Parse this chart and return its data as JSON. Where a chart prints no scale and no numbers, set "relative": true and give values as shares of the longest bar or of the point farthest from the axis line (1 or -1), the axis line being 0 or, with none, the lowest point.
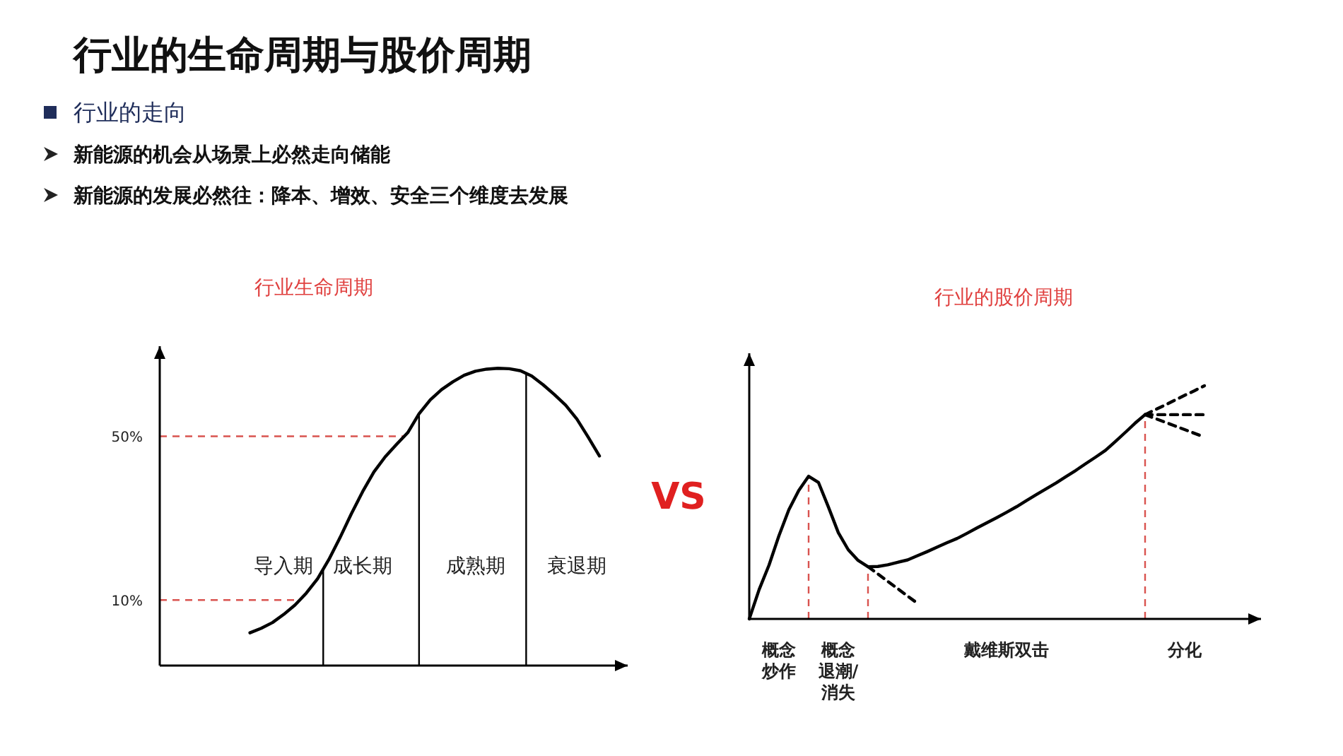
{
  "chart_data": [
    {
      "type": "other",
      "title": "行业的生命周期与股价周期",
      "annotations": [
        "行业的走向",
        "新能源的机会从场景上必然走向储能",
        "新能源的发展必然往：降本、增效、安全三个维度去发展",
        "VS"
      ]
    },
    {
      "type": "line",
      "title": "行业生命周期",
      "ylim": [
        -6,
        72
      ],
      "yticks": [
        {
          "value": 10,
          "label": "10%"
        },
        {
          "value": 50,
          "label": "50%"
        }
      ],
      "categories": [
        null,
        null,
        null,
        null,
        null,
        null,
        null,
        null,
        null,
        null,
        null,
        "导入期",
        null,
        null,
        null,
        null,
        null,
        null,
        "成长期",
        null,
        null,
        null,
        null,
        null,
        null,
        null,
        null,
        null,
        "成熟期",
        null,
        null,
        null,
        null,
        null,
        null,
        null,
        null,
        "衰退期",
        null,
        null,
        null
      ],
      "series": [
        {
          "color": "#000000",
          "values": [
            null,
            null,
            null,
            null,
            null,
            null,
            null,
            null,
            2.0,
            3.1,
            4.5,
            6.5,
            8.8,
            11.7,
            15.2,
            19.9,
            25.3,
            31.1,
            36.5,
            41.3,
            45.0,
            48.0,
            50.9,
            55.5,
            58.9,
            61.4,
            63.3,
            64.9,
            65.9,
            66.4,
            66.6,
            66.5,
            66.0,
            64.7,
            62.6,
            60.2,
            57.6,
            54.2,
            49.8,
            45.2,
            null
          ]
        }
      ],
      "ref_lines": [
        {
          "axis": "y",
          "value": 10,
          "color": "#d9534f",
          "line_style": "dashed"
        },
        {
          "axis": "y",
          "value": 50,
          "color": "#d9534f",
          "line_style": "dashed"
        }
      ]
    },
    {
      "type": "line",
      "title": "行业的股价周期",
      "relative": true,
      "tick_labels": "x",
      "categories": [
        null,
        null,
        null,
        "概念炒作",
        null,
        null,
        null,
        null,
        null,
        "概念退潮/消失",
        null,
        null,
        null,
        null,
        null,
        null,
        null,
        null,
        null,
        null,
        null,
        null,
        null,
        null,
        null,
        null,
        "戴维斯双击",
        null,
        null,
        null,
        null,
        null,
        null,
        null,
        null,
        null,
        null,
        null,
        null,
        null,
        null,
        null,
        null,
        null,
        "分化",
        null,
        null,
        null,
        null,
        null,
        null
      ],
      "series": [
        {
          "color": "#000000",
          "values": [
            0,
            0.126,
            0.231,
            0.357,
            0.468,
            0.551,
            0.612,
            0.585,
            0.48,
            0.37,
            0.297,
            0.251,
            0.224,
            0.225,
            0.232,
            0.243,
            0.253,
            0.271,
            0.289,
            0.308,
            0.327,
            0.345,
            0.367,
            0.39,
            0.412,
            0.434,
            0.457,
            0.481,
            0.507,
            0.533,
            0.558,
            0.583,
            0.61,
            0.637,
            0.666,
            0.694,
            0.723,
            0.761,
            0.8,
            0.84,
            0.876,
            null,
            null,
            null,
            null,
            null,
            null,
            null,
            null,
            null,
            null
          ]
        },
        {
          "color": "#000000",
          "line_style": "dashed",
          "values": [
            null,
            null,
            null,
            null,
            null,
            null,
            null,
            null,
            null,
            null,
            null,
            null,
            0.224,
            0.193,
            0.161,
            0.13,
            0.098,
            0.067,
            null,
            null,
            null,
            null,
            null,
            null,
            null,
            null,
            null,
            null,
            null,
            null,
            null,
            null,
            null,
            null,
            null,
            null,
            null,
            null,
            null,
            null,
            null,
            null,
            null,
            null,
            null,
            null,
            null,
            null,
            null,
            null,
            null
          ]
        },
        {
          "color": "#000000",
          "line_style": "dashed",
          "values": [
            null,
            null,
            null,
            null,
            null,
            null,
            null,
            null,
            null,
            null,
            null,
            null,
            null,
            null,
            null,
            null,
            null,
            null,
            null,
            null,
            null,
            null,
            null,
            null,
            null,
            null,
            null,
            null,
            null,
            null,
            null,
            null,
            null,
            null,
            null,
            null,
            null,
            null,
            null,
            null,
            0.876,
            0.897,
            0.917,
            0.938,
            0.959,
            0.979,
            1,
            null,
            null,
            null,
            null
          ]
        },
        {
          "color": "#000000",
          "line_style": "dashed",
          "values": [
            null,
            null,
            null,
            null,
            null,
            null,
            null,
            null,
            null,
            null,
            null,
            null,
            null,
            null,
            null,
            null,
            null,
            null,
            null,
            null,
            null,
            null,
            null,
            null,
            null,
            null,
            null,
            null,
            null,
            null,
            null,
            null,
            null,
            null,
            null,
            null,
            null,
            null,
            null,
            null,
            0.876,
            0.876,
            0.876,
            0.876,
            0.876,
            0.876,
            0.876,
            null,
            null,
            null,
            null
          ]
        },
        {
          "color": "#000000",
          "line_style": "dashed",
          "values": [
            null,
            null,
            null,
            null,
            null,
            null,
            null,
            null,
            null,
            null,
            null,
            null,
            null,
            null,
            null,
            null,
            null,
            null,
            null,
            null,
            null,
            null,
            null,
            null,
            null,
            null,
            null,
            null,
            null,
            null,
            null,
            null,
            null,
            null,
            null,
            null,
            null,
            null,
            null,
            null,
            0.876,
            0.86,
            0.844,
            0.828,
            0.812,
            0.796,
            0.78,
            null,
            null,
            null,
            null
          ]
        }
      ]
    }
  ]
}
